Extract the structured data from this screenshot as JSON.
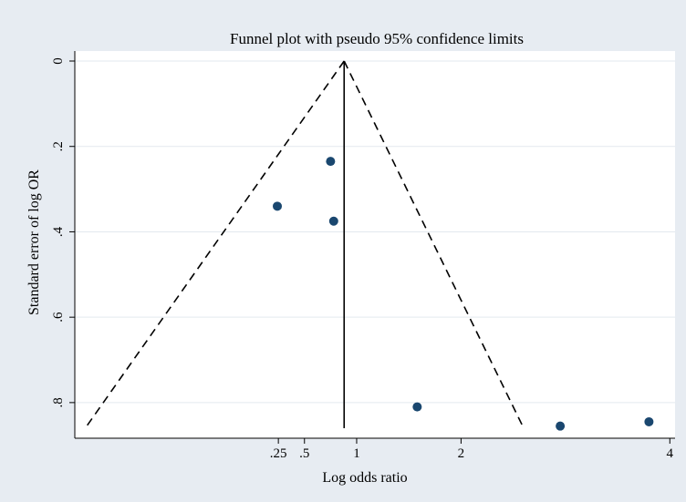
{
  "chart_data": {
    "type": "scatter",
    "title": "Funnel plot with pseudo 95% confidence limits",
    "xlabel": "Log odds ratio",
    "ylabel": "Standard error of log OR",
    "x_scale": "log odds ratio",
    "y_reversed": true,
    "xlim": [
      -1.7,
      4.05
    ],
    "ylim": [
      0,
      0.86
    ],
    "grid": "horizontal",
    "legend": "none",
    "x_ticks": [
      {
        "value": 0.25,
        "label": ".25"
      },
      {
        "value": 0.5,
        "label": ".5"
      },
      {
        "value": 1,
        "label": "1"
      },
      {
        "value": 2,
        "label": "2"
      },
      {
        "value": 4,
        "label": "4"
      }
    ],
    "y_ticks": [
      {
        "value": 0,
        "label": "0"
      },
      {
        "value": 0.2,
        "label": ".2"
      },
      {
        "value": 0.4,
        "label": ".4"
      },
      {
        "value": 0.6,
        "label": ".6"
      },
      {
        "value": 0.8,
        "label": ".8"
      }
    ],
    "pooled_estimate": 0.88,
    "confidence_limits": {
      "left": [
        {
          "x": 0.88,
          "y": 0
        },
        {
          "x": -1.6,
          "y": 0.86
        }
      ],
      "right": [
        {
          "x": 0.88,
          "y": 0
        },
        {
          "x": 2.6,
          "y": 0.86
        }
      ]
    },
    "points": [
      {
        "x": 0.75,
        "y": 0.235
      },
      {
        "x": 0.78,
        "y": 0.375
      },
      {
        "x": 0.24,
        "y": 0.34
      },
      {
        "x": 1.58,
        "y": 0.81
      },
      {
        "x": 2.95,
        "y": 0.855
      },
      {
        "x": 3.8,
        "y": 0.845
      }
    ],
    "colors": {
      "background": "#e7ecf2",
      "plot_background": "#ffffff",
      "grid": "#e3e9ef",
      "marker": "#1a476f",
      "line": "#000000"
    }
  }
}
